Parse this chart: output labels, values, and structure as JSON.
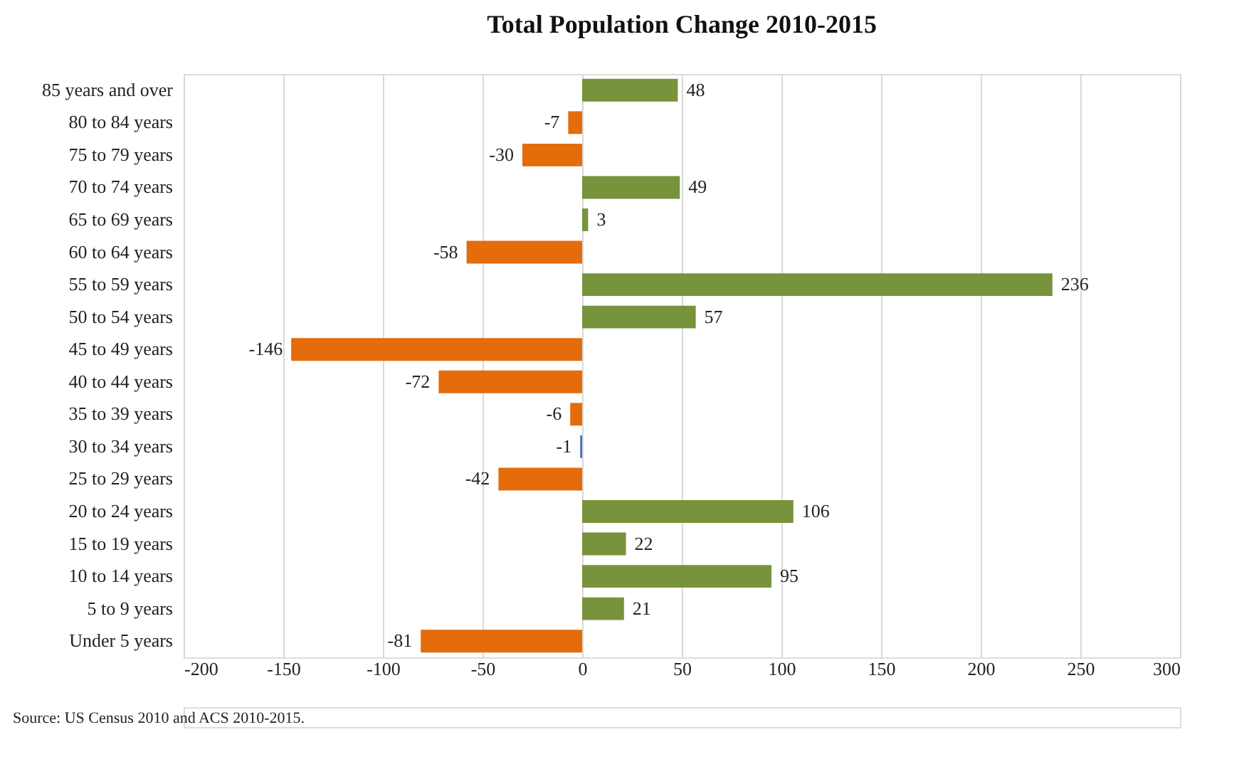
{
  "chart_data": {
    "type": "bar",
    "orientation": "horizontal",
    "title": "Total Population Change 2010-2015",
    "categories": [
      "85 years and over",
      "80 to 84 years",
      "75 to 79 years",
      "70 to 74 years",
      "65 to 69 years",
      "60 to 64 years",
      "55 to 59 years",
      "50 to 54 years",
      "45 to 49 years",
      "40 to 44 years",
      "35 to 39 years",
      "30 to 34 years",
      "25 to 29 years",
      "20 to 24 years",
      "15 to 19 years",
      "10 to 14 years",
      "5 to 9 years",
      "Under 5 years"
    ],
    "values": [
      48,
      -7,
      -30,
      49,
      3,
      -58,
      236,
      57,
      -146,
      -72,
      -6,
      -1,
      -42,
      106,
      22,
      95,
      21,
      -81
    ],
    "colors": [
      "#77933c",
      "#e46c0a",
      "#e46c0a",
      "#77933c",
      "#77933c",
      "#e46c0a",
      "#77933c",
      "#77933c",
      "#e46c0a",
      "#e46c0a",
      "#e46c0a",
      "#4472c4",
      "#e46c0a",
      "#77933c",
      "#77933c",
      "#77933c",
      "#77933c",
      "#e46c0a"
    ],
    "xlim": [
      -200,
      300
    ],
    "xticks": [
      -200,
      -150,
      -100,
      -50,
      0,
      50,
      100,
      150,
      200,
      250,
      300
    ],
    "grid": "x",
    "data_labels": true,
    "annotations": [
      "Source: US Census 2010 and ACS 2010-2015."
    ]
  }
}
